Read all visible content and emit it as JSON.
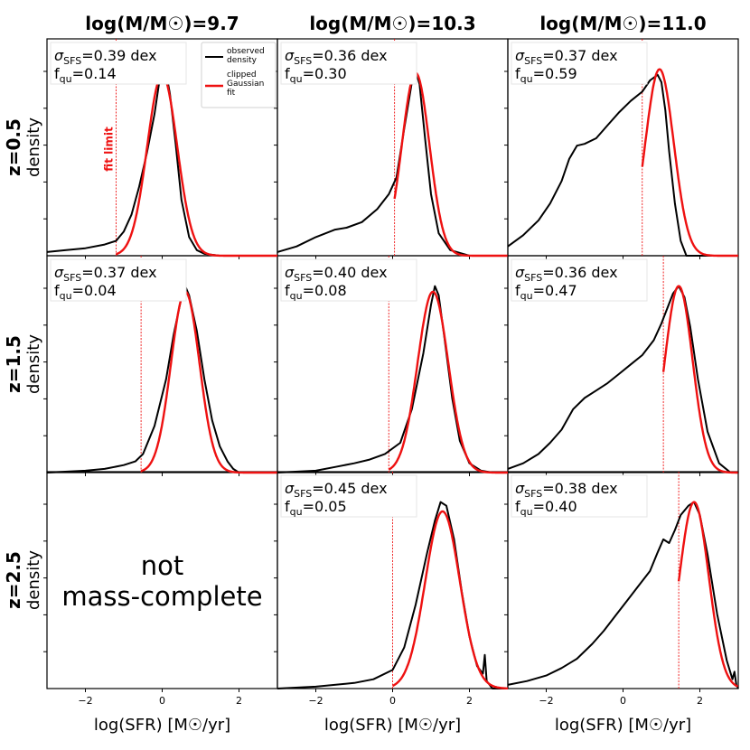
{
  "figure": {
    "column_titles": [
      "log(M/M☉)=9.7",
      "log(M/M☉)=10.3",
      "log(M/M☉)=11.0"
    ],
    "row_titles": [
      "z=0.5",
      "z=1.5",
      "z=2.5"
    ],
    "ylabel": "density",
    "xlabel": "log(SFR) [M☉/yr]",
    "xticks": [
      -2,
      0,
      2
    ],
    "fit_limit_label": "fit limit",
    "legend": {
      "observed": "observed\ndensity",
      "fit": "clipped\nGaussian\nfit"
    },
    "not_complete_text": [
      "not",
      "mass-complete"
    ],
    "colors": {
      "observed": "#000000",
      "fit": "#ee1111",
      "fit_limit": "#ee1111"
    }
  },
  "chart_data": {
    "type": "line",
    "xlim": [
      -3,
      3
    ],
    "panels": [
      {
        "row": 0,
        "col": 0,
        "sigma_label": "σSFS=0.39 dex",
        "fqu_label": "fqu=0.14",
        "sigma": 0.39,
        "fqu": 0.14,
        "fit_limit": -1.2,
        "fit": {
          "mu": 0.0,
          "sigma": 0.39,
          "peak": 0.97,
          "xmin": -1.2
        },
        "observed": [
          [
            -3.0,
            0.02
          ],
          [
            -2.5,
            0.03
          ],
          [
            -2.0,
            0.04
          ],
          [
            -1.5,
            0.06
          ],
          [
            -1.2,
            0.08
          ],
          [
            -1.0,
            0.13
          ],
          [
            -0.8,
            0.22
          ],
          [
            -0.6,
            0.37
          ],
          [
            -0.4,
            0.55
          ],
          [
            -0.2,
            0.76
          ],
          [
            -0.05,
            0.97
          ],
          [
            0.0,
            1.0
          ],
          [
            0.1,
            0.98
          ],
          [
            0.2,
            0.87
          ],
          [
            0.35,
            0.6
          ],
          [
            0.5,
            0.3
          ],
          [
            0.7,
            0.1
          ],
          [
            0.9,
            0.03
          ],
          [
            1.1,
            0.01
          ],
          [
            1.5,
            0.0
          ],
          [
            3.0,
            0.0
          ]
        ]
      },
      {
        "row": 0,
        "col": 1,
        "sigma_label": "σSFS=0.36 dex",
        "fqu_label": "fqu=0.30",
        "sigma": 0.36,
        "fqu": 0.3,
        "fit_limit": 0.05,
        "fit": {
          "mu": 0.6,
          "sigma": 0.36,
          "peak": 0.98,
          "xmin": 0.05
        },
        "observed": [
          [
            -3.0,
            0.02
          ],
          [
            -2.5,
            0.05
          ],
          [
            -2.0,
            0.1
          ],
          [
            -1.5,
            0.14
          ],
          [
            -1.2,
            0.15
          ],
          [
            -0.8,
            0.18
          ],
          [
            -0.4,
            0.25
          ],
          [
            -0.1,
            0.33
          ],
          [
            0.1,
            0.42
          ],
          [
            0.3,
            0.68
          ],
          [
            0.5,
            0.93
          ],
          [
            0.6,
            0.99
          ],
          [
            0.7,
            0.92
          ],
          [
            0.85,
            0.62
          ],
          [
            1.0,
            0.33
          ],
          [
            1.2,
            0.12
          ],
          [
            1.5,
            0.03
          ],
          [
            2.0,
            0.0
          ],
          [
            3.0,
            0.0
          ]
        ]
      },
      {
        "row": 0,
        "col": 2,
        "sigma_label": "σSFS=0.37 dex",
        "fqu_label": "fqu=0.59",
        "sigma": 0.37,
        "fqu": 0.59,
        "fit_limit": 0.5,
        "fit": {
          "mu": 0.95,
          "sigma": 0.37,
          "peak": 1.0,
          "xmin": 0.5
        },
        "observed": [
          [
            -3.0,
            0.05
          ],
          [
            -2.6,
            0.11
          ],
          [
            -2.2,
            0.19
          ],
          [
            -1.9,
            0.28
          ],
          [
            -1.6,
            0.4
          ],
          [
            -1.4,
            0.52
          ],
          [
            -1.2,
            0.59
          ],
          [
            -1.0,
            0.6
          ],
          [
            -0.7,
            0.63
          ],
          [
            -0.4,
            0.7
          ],
          [
            -0.1,
            0.77
          ],
          [
            0.2,
            0.83
          ],
          [
            0.5,
            0.88
          ],
          [
            0.7,
            0.94
          ],
          [
            0.9,
            0.97
          ],
          [
            1.0,
            0.93
          ],
          [
            1.1,
            0.78
          ],
          [
            1.2,
            0.56
          ],
          [
            1.35,
            0.28
          ],
          [
            1.5,
            0.08
          ],
          [
            1.65,
            0.0
          ],
          [
            3.0,
            0.0
          ]
        ]
      },
      {
        "row": 1,
        "col": 0,
        "sigma_label": "σSFS=0.37 dex",
        "fqu_label": "fqu=0.04",
        "sigma": 0.37,
        "fqu": 0.04,
        "fit_limit": -0.55,
        "fit": {
          "mu": 0.6,
          "sigma": 0.37,
          "peak": 0.97,
          "xmin": -0.55
        },
        "observed": [
          [
            -3.0,
            0.0
          ],
          [
            -2.0,
            0.01
          ],
          [
            -1.5,
            0.02
          ],
          [
            -1.0,
            0.04
          ],
          [
            -0.7,
            0.06
          ],
          [
            -0.5,
            0.1
          ],
          [
            -0.2,
            0.25
          ],
          [
            0.1,
            0.5
          ],
          [
            0.3,
            0.74
          ],
          [
            0.5,
            0.94
          ],
          [
            0.6,
            1.0
          ],
          [
            0.7,
            0.95
          ],
          [
            0.9,
            0.76
          ],
          [
            1.1,
            0.5
          ],
          [
            1.3,
            0.28
          ],
          [
            1.5,
            0.14
          ],
          [
            1.7,
            0.06
          ],
          [
            1.85,
            0.02
          ],
          [
            2.0,
            0.0
          ],
          [
            3.0,
            0.0
          ]
        ]
      },
      {
        "row": 1,
        "col": 1,
        "sigma_label": "σSFS=0.40 dex",
        "fqu_label": "fqu=0.08",
        "sigma": 0.4,
        "fqu": 0.08,
        "fit_limit": -0.1,
        "fit": {
          "mu": 1.05,
          "sigma": 0.4,
          "peak": 0.97,
          "xmin": -0.1
        },
        "observed": [
          [
            -3.0,
            0.0
          ],
          [
            -2.0,
            0.01
          ],
          [
            -1.5,
            0.03
          ],
          [
            -1.0,
            0.05
          ],
          [
            -0.6,
            0.07
          ],
          [
            -0.2,
            0.1
          ],
          [
            0.2,
            0.16
          ],
          [
            0.5,
            0.34
          ],
          [
            0.8,
            0.64
          ],
          [
            1.0,
            0.9
          ],
          [
            1.1,
            1.0
          ],
          [
            1.2,
            0.95
          ],
          [
            1.35,
            0.72
          ],
          [
            1.55,
            0.4
          ],
          [
            1.75,
            0.17
          ],
          [
            2.0,
            0.05
          ],
          [
            2.3,
            0.01
          ],
          [
            2.6,
            0.0
          ],
          [
            3.0,
            0.0
          ]
        ]
      },
      {
        "row": 1,
        "col": 2,
        "sigma_label": "σSFS=0.36 dex",
        "fqu_label": "fqu=0.47",
        "sigma": 0.36,
        "fqu": 0.47,
        "fit_limit": 1.05,
        "fit": {
          "mu": 1.45,
          "sigma": 0.36,
          "peak": 1.0,
          "xmin": 1.05
        },
        "observed": [
          [
            -3.0,
            0.02
          ],
          [
            -2.6,
            0.05
          ],
          [
            -2.2,
            0.1
          ],
          [
            -1.9,
            0.16
          ],
          [
            -1.6,
            0.23
          ],
          [
            -1.3,
            0.34
          ],
          [
            -1.0,
            0.4
          ],
          [
            -0.7,
            0.44
          ],
          [
            -0.4,
            0.48
          ],
          [
            -0.1,
            0.53
          ],
          [
            0.2,
            0.58
          ],
          [
            0.5,
            0.63
          ],
          [
            0.8,
            0.71
          ],
          [
            1.0,
            0.8
          ],
          [
            1.15,
            0.88
          ],
          [
            1.3,
            0.96
          ],
          [
            1.45,
            1.0
          ],
          [
            1.6,
            0.94
          ],
          [
            1.75,
            0.78
          ],
          [
            1.95,
            0.5
          ],
          [
            2.2,
            0.22
          ],
          [
            2.5,
            0.05
          ],
          [
            2.8,
            0.0
          ],
          [
            3.0,
            0.0
          ]
        ]
      },
      {
        "row": 2,
        "col": 1,
        "sigma_label": "σSFS=0.45 dex",
        "fqu_label": "fqu=0.05",
        "sigma": 0.45,
        "fqu": 0.05,
        "fit_limit": 0.0,
        "fit": {
          "mu": 1.3,
          "sigma": 0.45,
          "peak": 0.95,
          "xmin": 0.0
        },
        "observed": [
          [
            -3.0,
            0.0
          ],
          [
            -2.0,
            0.01
          ],
          [
            -1.0,
            0.03
          ],
          [
            -0.5,
            0.05
          ],
          [
            0.0,
            0.1
          ],
          [
            0.3,
            0.22
          ],
          [
            0.6,
            0.45
          ],
          [
            0.9,
            0.73
          ],
          [
            1.1,
            0.9
          ],
          [
            1.25,
            1.0
          ],
          [
            1.4,
            0.98
          ],
          [
            1.6,
            0.8
          ],
          [
            1.8,
            0.52
          ],
          [
            2.0,
            0.28
          ],
          [
            2.2,
            0.12
          ],
          [
            2.35,
            0.08
          ],
          [
            2.4,
            0.18
          ],
          [
            2.45,
            0.04
          ],
          [
            2.6,
            0.0
          ],
          [
            3.0,
            0.0
          ]
        ]
      },
      {
        "row": 2,
        "col": 2,
        "sigma_label": "σSFS=0.38 dex",
        "fqu_label": "fqu=0.40",
        "sigma": 0.38,
        "fqu": 0.4,
        "fit_limit": 1.45,
        "fit": {
          "mu": 1.85,
          "sigma": 0.38,
          "peak": 1.0,
          "xmin": 1.45
        },
        "observed": [
          [
            -3.0,
            0.02
          ],
          [
            -2.5,
            0.04
          ],
          [
            -2.0,
            0.07
          ],
          [
            -1.6,
            0.11
          ],
          [
            -1.2,
            0.16
          ],
          [
            -0.8,
            0.24
          ],
          [
            -0.5,
            0.31
          ],
          [
            -0.2,
            0.39
          ],
          [
            0.1,
            0.47
          ],
          [
            0.4,
            0.55
          ],
          [
            0.7,
            0.63
          ],
          [
            0.9,
            0.73
          ],
          [
            1.05,
            0.8
          ],
          [
            1.2,
            0.78
          ],
          [
            1.35,
            0.85
          ],
          [
            1.5,
            0.93
          ],
          [
            1.7,
            0.98
          ],
          [
            1.85,
            1.0
          ],
          [
            2.0,
            0.93
          ],
          [
            2.2,
            0.72
          ],
          [
            2.45,
            0.4
          ],
          [
            2.7,
            0.15
          ],
          [
            2.85,
            0.05
          ],
          [
            2.9,
            0.09
          ],
          [
            2.95,
            0.02
          ],
          [
            3.0,
            0.0
          ]
        ]
      }
    ]
  }
}
